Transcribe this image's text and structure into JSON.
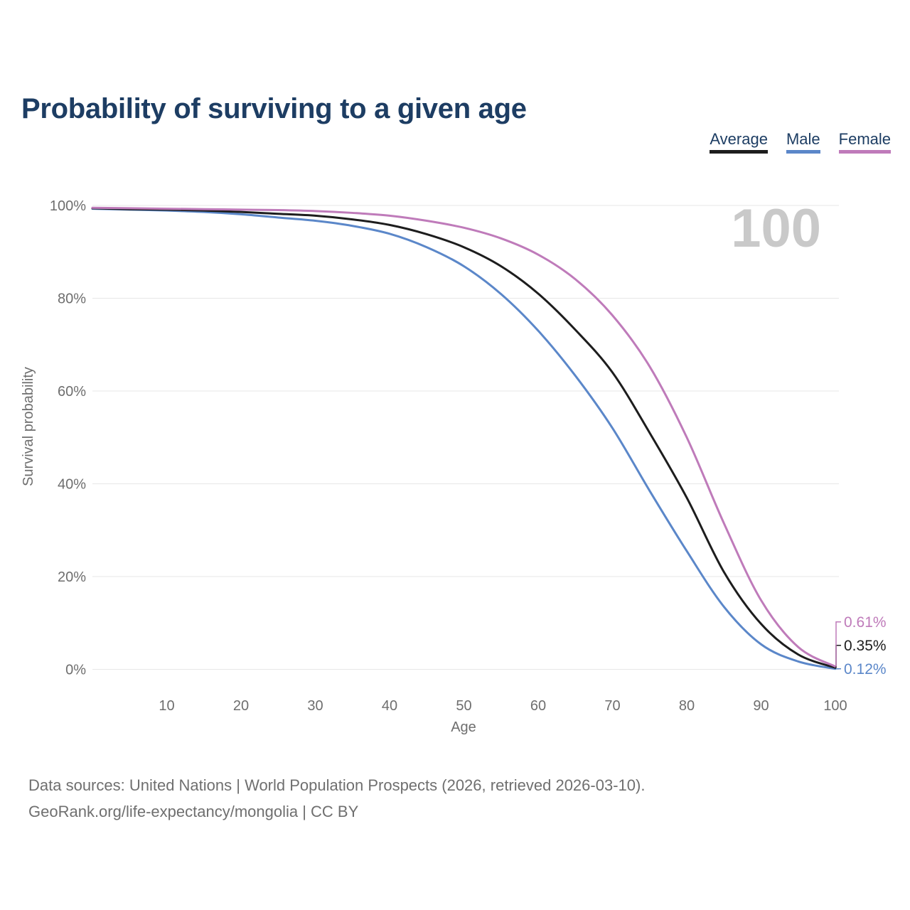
{
  "title": "Probability of surviving to a given age",
  "watermark": "100",
  "legend": {
    "items": [
      {
        "label": "Average",
        "color": "#1d1d1d"
      },
      {
        "label": "Male",
        "color": "#5b87c9"
      },
      {
        "label": "Female",
        "color": "#bf7bba"
      }
    ]
  },
  "chart_data": {
    "type": "line",
    "title": "Probability of surviving to a given age",
    "xlabel": "Age",
    "ylabel": "Survival probability",
    "xlim": [
      0,
      100
    ],
    "ylim": [
      0,
      100
    ],
    "x_ticks": [
      10,
      20,
      30,
      40,
      50,
      60,
      70,
      80,
      90,
      100
    ],
    "y_ticks": [
      0,
      20,
      40,
      60,
      80,
      100
    ],
    "y_tick_suffix": "%",
    "grid": "horizontal",
    "grid_color": "#e7e7e7",
    "legend_position": "top-right",
    "x": [
      0,
      5,
      10,
      15,
      20,
      25,
      30,
      35,
      40,
      45,
      50,
      55,
      60,
      65,
      70,
      75,
      80,
      85,
      90,
      95,
      100
    ],
    "series": [
      {
        "name": "Average",
        "color": "#1d1d1d",
        "end_label": "0.35%",
        "values": [
          99.4,
          99.2,
          99.1,
          98.9,
          98.6,
          98.2,
          97.8,
          97.0,
          95.8,
          93.8,
          91.0,
          86.9,
          81.0,
          73.2,
          64.0,
          51.0,
          37.0,
          21.0,
          9.8,
          3.2,
          0.35
        ]
      },
      {
        "name": "Male",
        "color": "#5b87c9",
        "end_label": "0.12%",
        "values": [
          99.3,
          99.1,
          98.9,
          98.6,
          98.1,
          97.4,
          96.7,
          95.6,
          93.9,
          91.0,
          86.9,
          80.9,
          73.0,
          63.3,
          52.0,
          38.5,
          25.5,
          13.5,
          5.4,
          1.7,
          0.12
        ]
      },
      {
        "name": "Female",
        "color": "#bf7bba",
        "end_label": "0.61%",
        "values": [
          99.5,
          99.4,
          99.3,
          99.2,
          99.1,
          99.0,
          98.8,
          98.4,
          97.8,
          96.7,
          95.2,
          92.9,
          89.4,
          84.1,
          76.3,
          65.3,
          50.0,
          31.5,
          14.9,
          4.8,
          0.61
        ]
      }
    ]
  },
  "footer": {
    "line1": "Data sources: United Nations | World Population Prospects (2026, retrieved 2026-03-10).",
    "line2": "GeoRank.org/life-expectancy/mongolia | CC BY"
  }
}
